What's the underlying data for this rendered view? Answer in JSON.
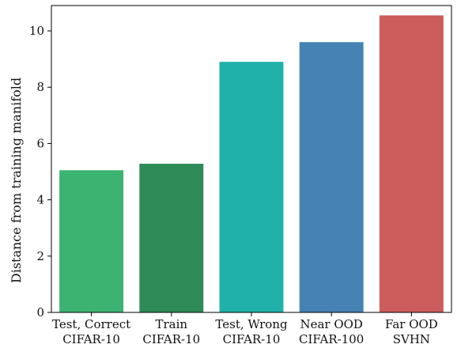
{
  "chart_data": {
    "type": "bar",
    "title": "",
    "xlabel": "",
    "ylabel": "Distance from training manifold",
    "ylim": [
      0,
      10.9
    ],
    "yticks": [
      0,
      2,
      4,
      6,
      8,
      10
    ],
    "grid": false,
    "legend": "none",
    "categories": [
      {
        "line1": "Test, Correct",
        "line2": "CIFAR-10"
      },
      {
        "line1": "Train",
        "line2": "CIFAR-10"
      },
      {
        "line1": "Test, Wrong",
        "line2": "CIFAR-10"
      },
      {
        "line1": "Near OOD",
        "line2": "CIFAR-100"
      },
      {
        "line1": "Far OOD",
        "line2": "SVHN"
      }
    ],
    "values": [
      5.05,
      5.28,
      8.9,
      9.6,
      10.55
    ],
    "colors": [
      "#3cb371",
      "#2e8b57",
      "#20b2aa",
      "#4682b4",
      "#cd5c5c"
    ]
  }
}
